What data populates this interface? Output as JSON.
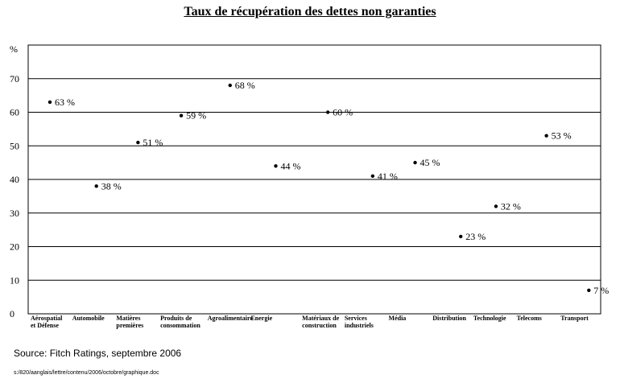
{
  "chart_data": {
    "type": "scatter",
    "title": "Taux de récupération des dettes non garanties",
    "ylabel": "%",
    "ylim": [
      0,
      80
    ],
    "yticks": [
      0,
      10,
      20,
      30,
      40,
      50,
      60,
      70
    ],
    "grid": true,
    "categories": [
      "Aérospatial et Défense",
      "Automobile",
      "Matières premières",
      "Produits de consommation",
      "Agroalimentaire",
      "Energie",
      "Matériaux de construction",
      "Services industriels",
      "Média",
      "Distribution",
      "Technologie",
      "Telecoms",
      "Transport"
    ],
    "values": [
      63,
      38,
      51,
      59,
      68,
      44,
      60,
      41,
      45,
      23,
      32,
      53,
      7
    ],
    "data_labels": [
      "63 %",
      "38 %",
      "51 %",
      "59 %",
      "68 %",
      "44 %",
      "60 %",
      "41 %",
      "45 %",
      "23 %",
      "32 %",
      "53 %",
      "7 %"
    ]
  },
  "source": "Source: Fitch Ratings, septembre 2006",
  "file_path": "s:/820/aanglais/lettre/contenu/2006/octobre/graphique.doc"
}
